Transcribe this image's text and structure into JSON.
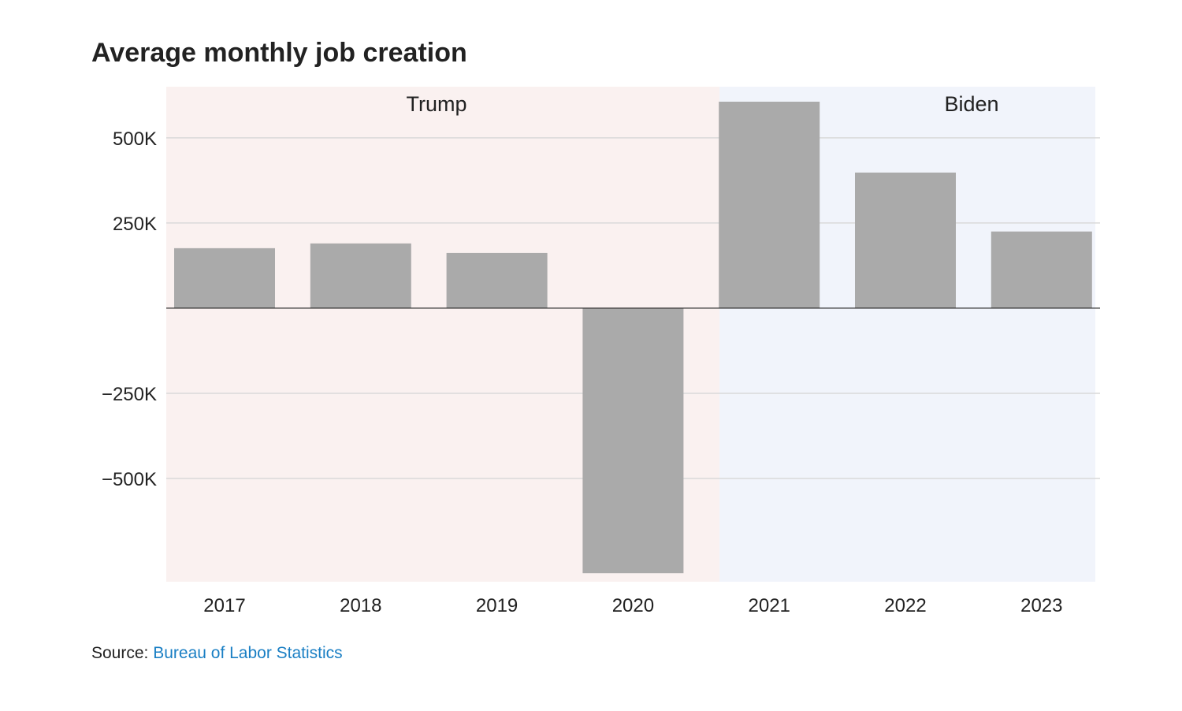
{
  "chart_data": {
    "type": "bar",
    "title": "Average monthly job creation",
    "categories": [
      "2017",
      "2018",
      "2019",
      "2020",
      "2021",
      "2022",
      "2023"
    ],
    "values": [
      176000,
      190000,
      162000,
      -778000,
      606000,
      398000,
      225000
    ],
    "ylim": [
      -803000,
      650000
    ],
    "yticks": [
      500000,
      250000,
      -250000,
      -500000
    ],
    "ytick_labels": [
      "500K",
      "250K",
      "−250K",
      "−500K"
    ],
    "xlabel": "",
    "ylabel": "",
    "grid": true,
    "regions": [
      {
        "label": "Trump",
        "from": "2017",
        "to": "2020",
        "color": "#faf1f0"
      },
      {
        "label": "Biden",
        "from": "2021",
        "to": "2023",
        "color": "#f1f4fb"
      }
    ],
    "bar_color": "#aaaaaa"
  },
  "source": {
    "label": "Source:",
    "link": "Bureau of Labor Statistics"
  }
}
